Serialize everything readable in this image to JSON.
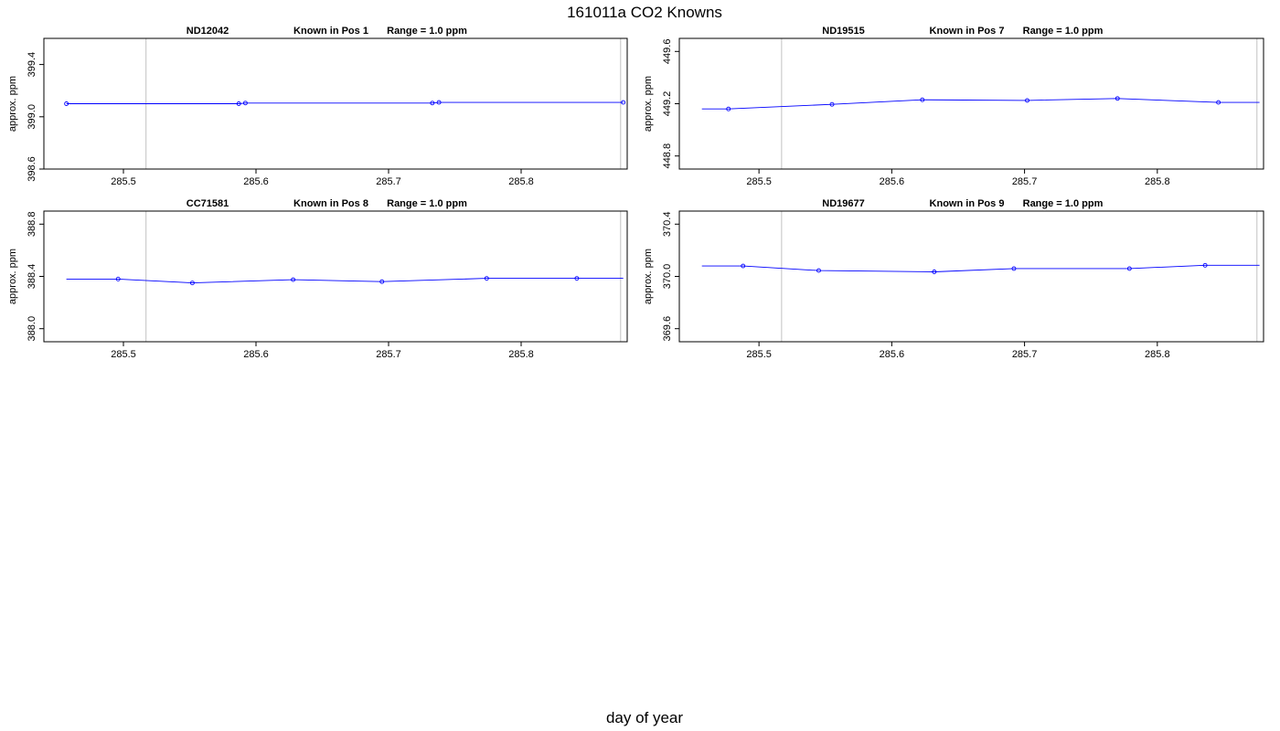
{
  "figure": {
    "title": "161011a   CO2 Knowns",
    "xlabel": "day of year"
  },
  "chart_data": [
    {
      "type": "line",
      "title_parts": [
        "ND12042",
        "Known in Pos 1",
        "Range = 1.0 ppm"
      ],
      "ylabel": "approx. ppm",
      "xlim": [
        285.44,
        285.88
      ],
      "ylim": [
        398.6,
        399.6
      ],
      "xticks": [
        "285.5",
        "285.6",
        "285.7",
        "285.8"
      ],
      "yticks": [
        "398.6",
        "399.0",
        "399.4"
      ],
      "vlines": [
        285.517,
        285.875
      ],
      "series": [
        {
          "color": "#0000ff",
          "x": [
            285.457,
            285.587,
            285.592,
            285.733,
            285.738,
            285.877
          ],
          "y": [
            399.1,
            399.1,
            399.105,
            399.105,
            399.11,
            399.11
          ],
          "line_x_start": 285.457,
          "line_x_end": 285.877
        }
      ]
    },
    {
      "type": "line",
      "title_parts": [
        "ND19515",
        "Known in Pos 7",
        "Range = 1.0 ppm"
      ],
      "ylabel": "approx. ppm",
      "xlim": [
        285.44,
        285.88
      ],
      "ylim": [
        448.7,
        449.7
      ],
      "xticks": [
        "285.5",
        "285.6",
        "285.7",
        "285.8"
      ],
      "yticks": [
        "448.8",
        "449.2",
        "449.6"
      ],
      "vlines": [
        285.517,
        285.875
      ],
      "series": [
        {
          "color": "#0000ff",
          "x": [
            285.477,
            285.555,
            285.623,
            285.702,
            285.77,
            285.846
          ],
          "y": [
            449.16,
            449.195,
            449.23,
            449.225,
            449.24,
            449.21
          ],
          "line_x_start": 285.457,
          "line_x_end": 285.877
        }
      ]
    },
    {
      "type": "line",
      "title_parts": [
        "CC71581",
        "Known in Pos 8",
        "Range = 1.0 ppm"
      ],
      "ylabel": "approx. ppm",
      "xlim": [
        285.44,
        285.88
      ],
      "ylim": [
        387.9,
        388.9
      ],
      "xticks": [
        "285.5",
        "285.6",
        "285.7",
        "285.8"
      ],
      "yticks": [
        "388.0",
        "388.4",
        "388.8"
      ],
      "vlines": [
        285.517,
        285.875
      ],
      "series": [
        {
          "color": "#0000ff",
          "x": [
            285.496,
            285.552,
            285.628,
            285.695,
            285.774,
            285.842
          ],
          "y": [
            388.38,
            388.35,
            388.375,
            388.36,
            388.385,
            388.385
          ],
          "line_x_start": 285.457,
          "line_x_end": 285.877
        }
      ]
    },
    {
      "type": "line",
      "title_parts": [
        "ND19677",
        "Known in Pos 9",
        "Range = 1.0 ppm"
      ],
      "ylabel": "approx. ppm",
      "xlim": [
        285.44,
        285.88
      ],
      "ylim": [
        369.5,
        370.5
      ],
      "xticks": [
        "285.5",
        "285.6",
        "285.7",
        "285.8"
      ],
      "yticks": [
        "369.6",
        "370.0",
        "370.4"
      ],
      "vlines": [
        285.517,
        285.875
      ],
      "series": [
        {
          "color": "#0000ff",
          "x": [
            285.488,
            285.545,
            285.632,
            285.692,
            285.779,
            285.836
          ],
          "y": [
            370.08,
            370.045,
            370.035,
            370.06,
            370.06,
            370.085
          ],
          "line_x_start": 285.457,
          "line_x_end": 285.877
        }
      ]
    }
  ]
}
